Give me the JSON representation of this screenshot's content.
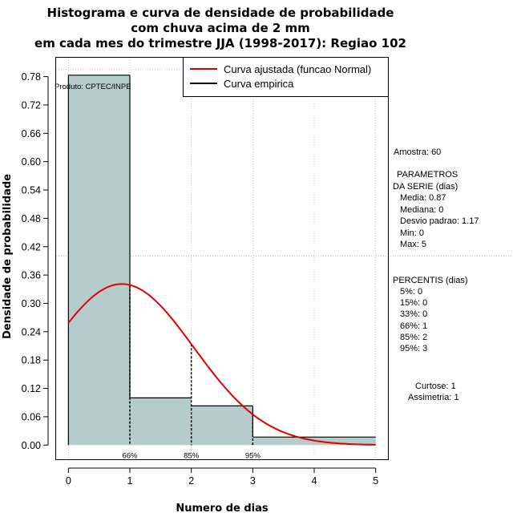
{
  "chart_data": {
    "type": "bar",
    "title_lines": [
      "Histograma e curva de densidade de probabilidade",
      "com chuva acima de 2 mm",
      "em cada mes do trimestre JJA (1998-2017): Regiao 102"
    ],
    "xlabel": "Numero de dias",
    "ylabel": "Densidade de probabilidade",
    "xlim": [
      -0.2,
      5.2
    ],
    "ylim": [
      -0.03,
      0.82
    ],
    "xticks": [
      "0",
      "1",
      "2",
      "3",
      "4",
      "5"
    ],
    "yticks": [
      "0.00",
      "0.06",
      "0.12",
      "0.18",
      "0.24",
      "0.30",
      "0.36",
      "0.42",
      "0.48",
      "0.54",
      "0.60",
      "0.66",
      "0.72",
      "0.78"
    ],
    "bins": [
      {
        "from": 0,
        "to": 1,
        "density": 0.783
      },
      {
        "from": 1,
        "to": 2,
        "density": 0.1
      },
      {
        "from": 2,
        "to": 3,
        "density": 0.083
      },
      {
        "from": 3,
        "to": 4,
        "density": 0.017
      },
      {
        "from": 4,
        "to": 5,
        "density": 0.017
      }
    ],
    "normal_fit": {
      "mean": 0.87,
      "sd": 1.17,
      "xmin": 0,
      "xmax": 5
    },
    "percentile_markers": [
      {
        "label": "66%",
        "x": 1
      },
      {
        "label": "85%",
        "x": 2
      },
      {
        "label": "95%",
        "x": 3
      }
    ],
    "reference_lines": {
      "y_value": 0.4,
      "x_value": 5.2
    },
    "legend": [
      {
        "label": "Curva ajustada (funcao Normal)",
        "color": "#e00000"
      },
      {
        "label": "Curva empirica",
        "color": "#000000"
      }
    ],
    "product_label": "Produto: CPTEC/INPE"
  },
  "stats_panel": {
    "sample": "Amostra: 60",
    "params_title_1": "PARAMETROS",
    "params_title_2": "DA SERIE (dias)",
    "media": "Media: 0.87",
    "mediana": "Mediana: 0",
    "desvio": "Desvio padrao: 1.17",
    "min": "Min: 0",
    "max": "Max: 5",
    "percentis_title": "PERCENTIS (dias)",
    "p5": "5%: 0",
    "p15": "15%: 0",
    "p33": "33%: 0",
    "p66": "66%: 1",
    "p85": "85%: 2",
    "p95": "95%: 3",
    "curtose": "Curtose: 1",
    "assimetria": "Assimetria: 1"
  },
  "colors": {
    "bar_fill": "#b5cccc",
    "curve": "#e00000",
    "grid": "#bbbbbb"
  }
}
